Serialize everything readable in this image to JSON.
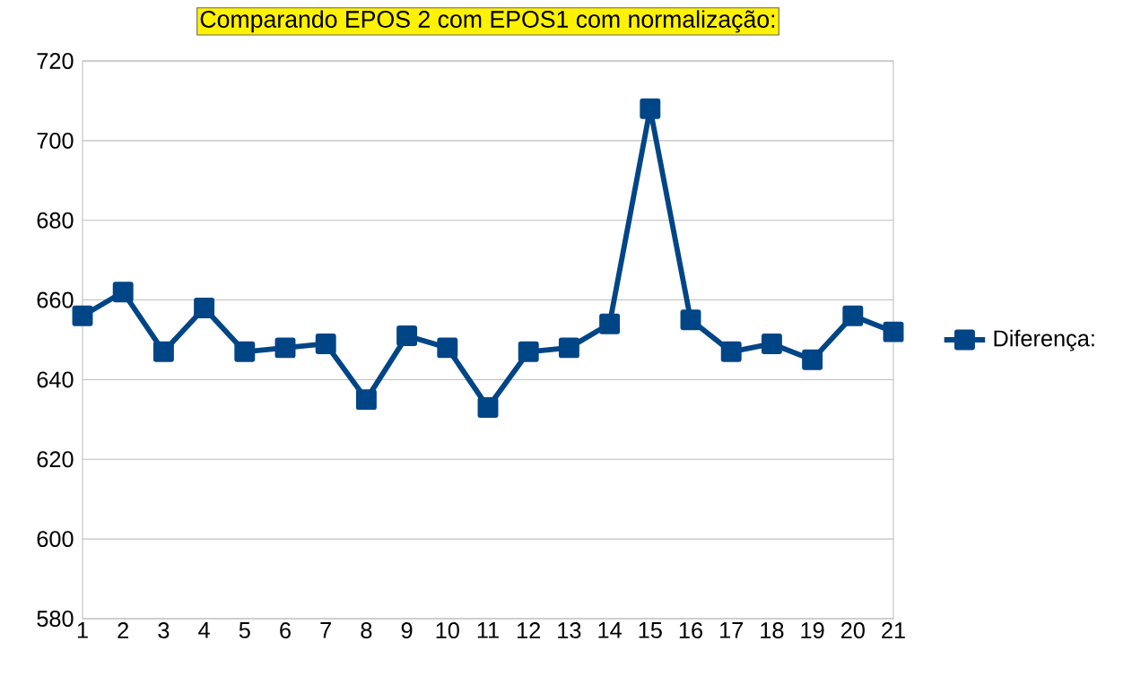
{
  "chart_data": {
    "type": "line",
    "title": "Comparando EPOS 2 com EPOS1 com normalização:",
    "categories": [
      "1",
      "2",
      "3",
      "4",
      "5",
      "6",
      "7",
      "8",
      "9",
      "10",
      "11",
      "12",
      "13",
      "14",
      "15",
      "16",
      "17",
      "18",
      "19",
      "20",
      "21"
    ],
    "series": [
      {
        "name": "Diferença:",
        "color": "#004586",
        "values": [
          656,
          662,
          647,
          658,
          647,
          648,
          649,
          635,
          651,
          648,
          633,
          647,
          648,
          654,
          708,
          655,
          647,
          649,
          645,
          656,
          652
        ]
      }
    ],
    "ylim": [
      580,
      720
    ],
    "yticks": [
      580,
      600,
      620,
      640,
      660,
      680,
      700,
      720
    ],
    "grid": "y",
    "legend": "right",
    "marker": "square",
    "line_style": "solid"
  }
}
